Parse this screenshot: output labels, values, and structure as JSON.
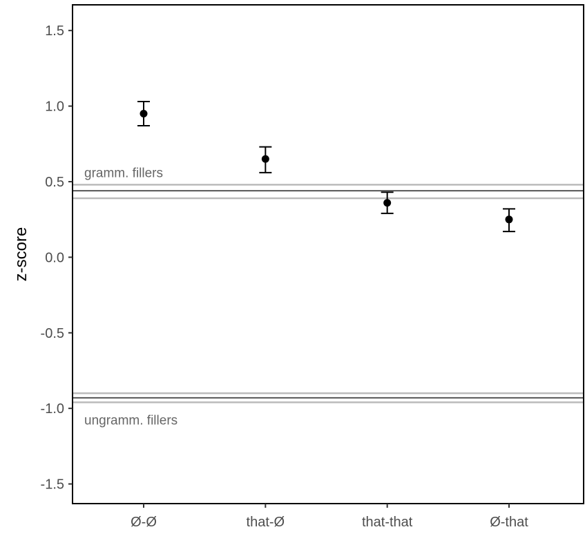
{
  "chart_data": {
    "type": "scatter",
    "ylabel": "z-score",
    "xlabel": "",
    "categories": [
      "Ø-Ø",
      "that-Ø",
      "that-that",
      "Ø-that"
    ],
    "points": [
      {
        "category": "Ø-Ø",
        "y": 0.95,
        "lower": 0.87,
        "upper": 1.03
      },
      {
        "category": "that-Ø",
        "y": 0.65,
        "lower": 0.56,
        "upper": 0.73
      },
      {
        "category": "that-that",
        "y": 0.36,
        "lower": 0.29,
        "upper": 0.43
      },
      {
        "category": "Ø-that",
        "y": 0.25,
        "lower": 0.17,
        "upper": 0.32
      }
    ],
    "ylim": [
      -1.63,
      1.67
    ],
    "yticks": [
      "-1.5",
      "-1.0",
      "-0.5",
      "0.0",
      "0.5",
      "1.0",
      "1.5"
    ],
    "reference_bands": [
      {
        "label": "gramm. fillers",
        "mean": 0.44,
        "lower": 0.39,
        "upper": 0.48,
        "label_position": "above"
      },
      {
        "label": "ungramm. fillers",
        "mean": -0.93,
        "lower": -0.96,
        "upper": -0.9,
        "label_position": "below"
      }
    ],
    "grid": false,
    "legend": "none",
    "colors": {
      "points": "#000000",
      "band_mean": "#555555",
      "band_edges": "#bbbbbb",
      "band_text": "#666666"
    }
  }
}
